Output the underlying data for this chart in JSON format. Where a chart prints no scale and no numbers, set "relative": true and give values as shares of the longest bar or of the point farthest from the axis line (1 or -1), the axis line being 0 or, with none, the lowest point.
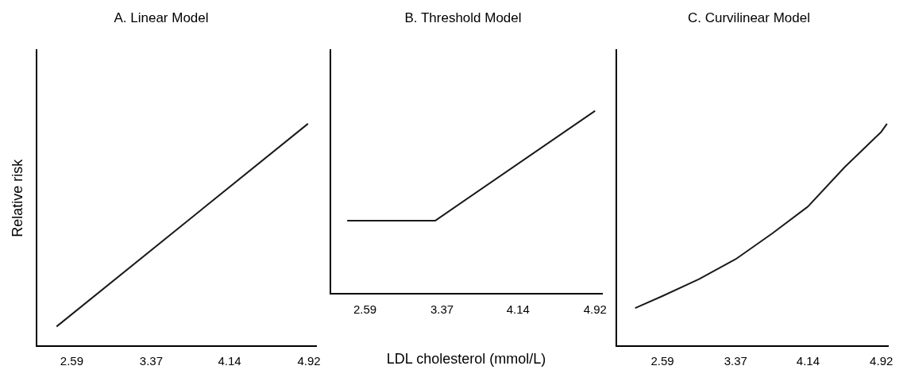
{
  "chart_data": [
    {
      "type": "line",
      "title": "A. Linear Model",
      "ylabel": "Relative risk",
      "relative": true,
      "xlim": [
        2.24,
        4.99
      ],
      "xticks": [
        2.59,
        3.37,
        4.14,
        4.92
      ],
      "grid": false,
      "legend": false,
      "marker": "none",
      "series": [
        {
          "color": "#1a1a1a",
          "x": [
            2.44,
            4.91
          ],
          "values": [
            0.088,
            1
          ]
        }
      ]
    },
    {
      "type": "line",
      "title": "B. Threshold Model",
      "xlabel": "LDL cholesterol (mmol/L)",
      "relative": true,
      "xlim": [
        2.24,
        4.99
      ],
      "xticks": [
        2.59,
        3.37,
        4.14,
        4.92
      ],
      "grid": false,
      "legend": false,
      "marker": "none",
      "series": [
        {
          "color": "#1a1a1a",
          "x": [
            2.41,
            3.3,
            4.92
          ],
          "values": [
            0.4,
            0.4,
            1
          ]
        }
      ]
    },
    {
      "type": "line",
      "title": "C. Curvilinear Model",
      "relative": true,
      "xlim": [
        2.1,
        4.99
      ],
      "xticks": [
        2.59,
        3.37,
        4.14,
        4.92
      ],
      "grid": false,
      "legend": false,
      "marker": "none",
      "series": [
        {
          "color": "#1a1a1a",
          "x": [
            2.3,
            2.59,
            2.98,
            3.37,
            3.76,
            4.14,
            4.53,
            4.92,
            4.98
          ],
          "values": [
            0.171,
            0.225,
            0.301,
            0.391,
            0.507,
            0.628,
            0.805,
            0.964,
            1
          ]
        }
      ]
    }
  ]
}
